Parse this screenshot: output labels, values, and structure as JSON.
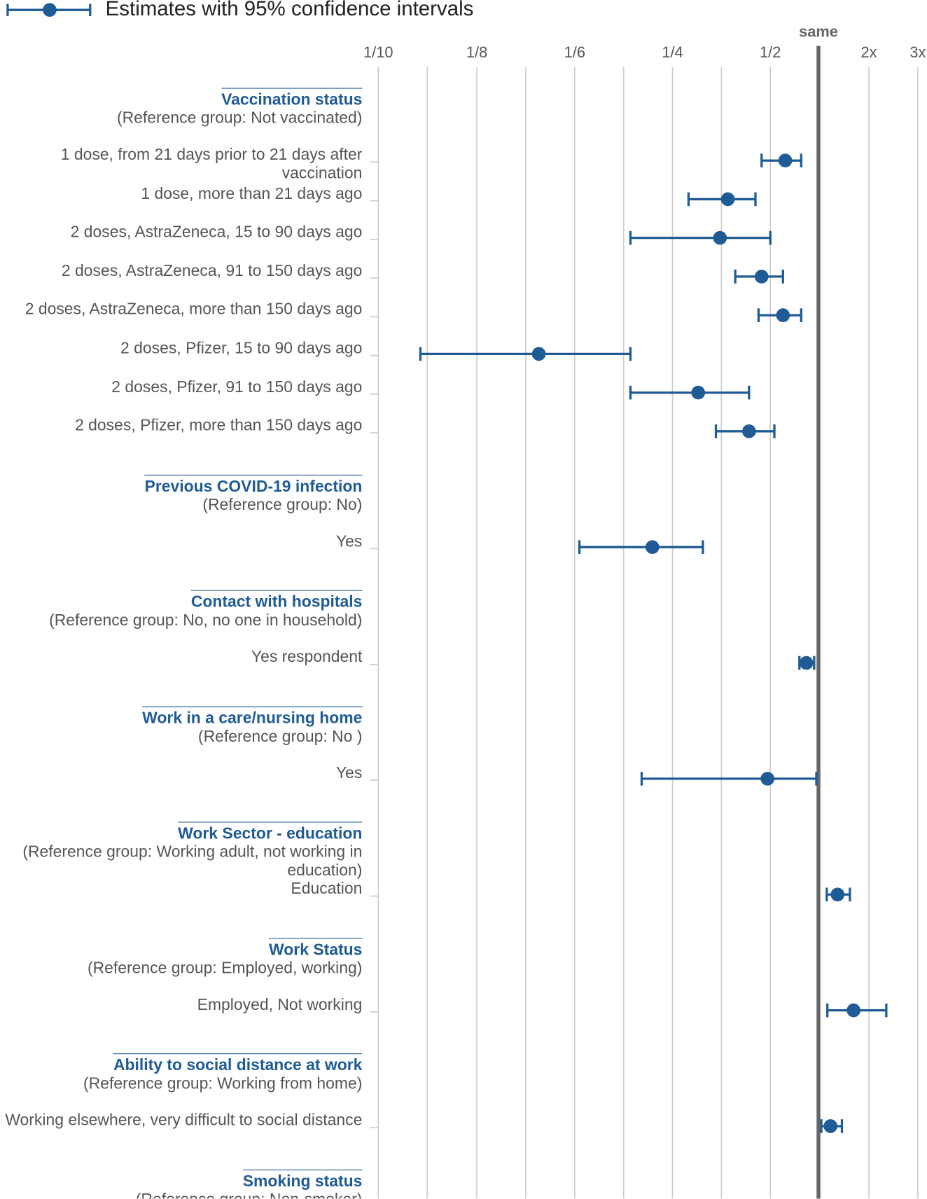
{
  "chart_data": {
    "type": "forest",
    "legend": "Estimates with 95% confidence intervals",
    "color": "#1f5b94",
    "log_scale": true,
    "grid": true,
    "xlim": [
      0.1,
      3
    ],
    "xticks": [
      {
        "value": 0.1,
        "label": "1/10"
      },
      {
        "value": 0.125,
        "label": "1/8"
      },
      {
        "value": 0.1667,
        "label": "1/6"
      },
      {
        "value": 0.25,
        "label": "1/4"
      },
      {
        "value": 0.5,
        "label": "1/2"
      },
      {
        "value": 1,
        "label": "same"
      },
      {
        "value": 2,
        "label": "2x"
      },
      {
        "value": 3,
        "label": "3x"
      }
    ],
    "groups": [
      {
        "title": "Vaccination status",
        "reference": "(Reference group: Not vaccinated)",
        "rows": [
          {
            "label": "1 dose, from 21 days prior to 21 days after vaccination",
            "value": 0.62,
            "lower": 0.47,
            "upper": 0.78
          },
          {
            "label": "1 dose, more than 21 days ago",
            "value": 0.37,
            "lower": 0.28,
            "upper": 0.45
          },
          {
            "label": "2 doses, AstraZeneca, 15 to 90 days ago",
            "value": 0.35,
            "lower": 0.21,
            "upper": 0.5
          },
          {
            "label": "2 doses, AstraZeneca, 91 to 150 days ago",
            "value": 0.47,
            "lower": 0.39,
            "upper": 0.6
          },
          {
            "label": "2 doses, AstraZeneca, more than 150 days ago",
            "value": 0.6,
            "lower": 0.46,
            "upper": 0.78
          },
          {
            "label": "2 doses, Pfizer, 15 to 90 days ago",
            "value": 0.15,
            "lower": 0.11,
            "upper": 0.21
          },
          {
            "label": "2 doses, Pfizer, 91 to 150 days ago",
            "value": 0.3,
            "lower": 0.21,
            "upper": 0.43
          },
          {
            "label": "2 doses, Pfizer, more than 150 days ago",
            "value": 0.43,
            "lower": 0.34,
            "upper": 0.53
          }
        ]
      },
      {
        "title": "Previous COVID-19 infection",
        "reference": "(Reference group: No)",
        "rows": [
          {
            "label": "Yes",
            "value": 0.23,
            "lower": 0.17,
            "upper": 0.31
          }
        ]
      },
      {
        "title": "Contact with hospitals",
        "reference": "(Reference group: No, no one in household)",
        "rows": [
          {
            "label": "Yes respondent",
            "value": 0.84,
            "lower": 0.76,
            "upper": 0.94
          }
        ]
      },
      {
        "title": "Work in a care/nursing home",
        "reference": "(Reference group: No )",
        "rows": [
          {
            "label": "Yes",
            "value": 0.49,
            "lower": 0.22,
            "upper": 0.97
          }
        ]
      },
      {
        "title": "Work Sector - education",
        "reference": "(Reference group: Working adult, not working in education)",
        "rows": [
          {
            "label": "Education",
            "value": 1.3,
            "lower": 1.12,
            "upper": 1.54
          }
        ]
      },
      {
        "title": "Work Status",
        "reference": "(Reference group: Employed, working)",
        "rows": [
          {
            "label": "Employed, Not working",
            "value": 1.62,
            "lower": 1.13,
            "upper": 2.31
          }
        ]
      },
      {
        "title": "Ability to social distance at work",
        "reference": "(Reference group: Working from home)",
        "rows": [
          {
            "label": "Working elsewhere, very difficult to social distance",
            "value": 1.18,
            "lower": 1.04,
            "upper": 1.38
          }
        ]
      },
      {
        "title": "Smoking status",
        "reference": "(Reference group: Non-smoker)",
        "rows": []
      }
    ]
  }
}
